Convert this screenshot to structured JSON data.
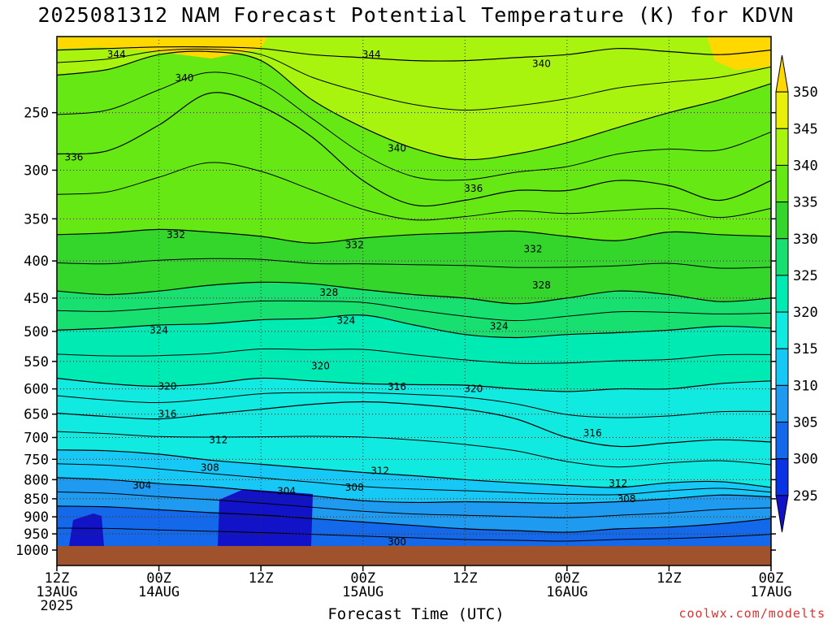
{
  "title": "2025081312 NAM Forecast Potential Temperature (K) for KDVN",
  "xlabel": "Forecast Time (UTC)",
  "credit": "coolwx.com/modelts",
  "chart_data": {
    "type": "contour",
    "yaxis": {
      "units": "hPa",
      "scale": "log",
      "range": [
        1000,
        200
      ],
      "reversed": true,
      "ticks": [
        250,
        300,
        350,
        400,
        450,
        500,
        550,
        600,
        650,
        700,
        750,
        800,
        850,
        900,
        950,
        1000
      ]
    },
    "xaxis": {
      "range_hours": [
        0,
        84
      ],
      "ticks": [
        {
          "h": 0,
          "lines": [
            "12Z",
            "13AUG",
            "2025"
          ]
        },
        {
          "h": 12,
          "lines": [
            "00Z",
            "14AUG"
          ]
        },
        {
          "h": 24,
          "lines": [
            "12Z"
          ]
        },
        {
          "h": 36,
          "lines": [
            "00Z",
            "15AUG"
          ]
        },
        {
          "h": 48,
          "lines": [
            "12Z"
          ]
        },
        {
          "h": 60,
          "lines": [
            "00Z",
            "16AUG"
          ]
        },
        {
          "h": 72,
          "lines": [
            "12Z"
          ]
        },
        {
          "h": 84,
          "lines": [
            "00Z",
            "17AUG"
          ]
        }
      ]
    },
    "colorbar": {
      "levels": [
        295,
        300,
        305,
        310,
        315,
        320,
        325,
        330,
        335,
        340,
        345,
        350
      ],
      "colors": [
        "#1212c8",
        "#0a33e6",
        "#1468ea",
        "#1e9bf0",
        "#16c8f5",
        "#10eae1",
        "#00ebb4",
        "#18e070",
        "#34d62c",
        "#66e814",
        "#a8f40e",
        "#e8f00a",
        "#ffd800"
      ]
    },
    "isentropes": [
      {
        "theta": 300,
        "p": [
          1000,
          1000,
          1000,
          1000,
          1000,
          1000,
          1000,
          1000,
          1000,
          1000,
          1000,
          1000,
          1000,
          1000,
          1000
        ]
      },
      {
        "theta": 304,
        "p": [
          870,
          872,
          880,
          888,
          895,
          905,
          915,
          925,
          935,
          940,
          945,
          935,
          930,
          920,
          905
        ]
      },
      {
        "theta": 308,
        "p": [
          795,
          800,
          810,
          818,
          830,
          842,
          855,
          860,
          858,
          860,
          862,
          858,
          850,
          840,
          845
        ]
      },
      {
        "theta": 312,
        "p": [
          728,
          730,
          738,
          752,
          762,
          772,
          782,
          790,
          800,
          808,
          815,
          820,
          808,
          805,
          820
        ]
      },
      {
        "theta": 316,
        "p": [
          648,
          655,
          660,
          650,
          640,
          630,
          625,
          630,
          640,
          660,
          700,
          720,
          712,
          705,
          710
        ]
      },
      {
        "theta": 320,
        "p": [
          580,
          590,
          595,
          590,
          580,
          585,
          590,
          592,
          593,
          600,
          605,
          600,
          600,
          590,
          585
        ]
      },
      {
        "theta": 324,
        "p": [
          498,
          495,
          490,
          488,
          482,
          480,
          475,
          490,
          505,
          510,
          505,
          502,
          498,
          492,
          495
        ]
      },
      {
        "theta": 328,
        "p": [
          440,
          445,
          440,
          432,
          428,
          430,
          438,
          445,
          450,
          458,
          450,
          440,
          445,
          455,
          450
        ]
      },
      {
        "theta": 332,
        "p": [
          368,
          366,
          362,
          365,
          370,
          378,
          372,
          368,
          366,
          364,
          370,
          375,
          365,
          368,
          370
        ]
      },
      {
        "theta": 336,
        "p": [
          285,
          282,
          260,
          235,
          245,
          270,
          310,
          335,
          330,
          320,
          320,
          310,
          315,
          330,
          310
        ]
      },
      {
        "theta": 340,
        "p": [
          222,
          218,
          208,
          206,
          212,
          240,
          262,
          280,
          290,
          285,
          275,
          262,
          250,
          240,
          228
        ]
      },
      {
        "theta": 344,
        "p": [
          205,
          204,
          203,
          203,
          204,
          208,
          210,
          212,
          212,
          210,
          208,
          204,
          206,
          208,
          205
        ]
      }
    ],
    "contour_labels": [
      {
        "text": "344",
        "h": 7,
        "p": 208
      },
      {
        "text": "344",
        "h": 37,
        "p": 208
      },
      {
        "text": "340",
        "h": 15,
        "p": 224
      },
      {
        "text": "340",
        "h": 57,
        "p": 214
      },
      {
        "text": "340",
        "h": 40,
        "p": 280
      },
      {
        "text": "336",
        "h": 2,
        "p": 288
      },
      {
        "text": "336",
        "h": 49,
        "p": 318
      },
      {
        "text": "332",
        "h": 14,
        "p": 368
      },
      {
        "text": "332",
        "h": 35,
        "p": 380
      },
      {
        "text": "332",
        "h": 56,
        "p": 385
      },
      {
        "text": "328",
        "h": 32,
        "p": 442
      },
      {
        "text": "328",
        "h": 57,
        "p": 432
      },
      {
        "text": "324",
        "h": 12,
        "p": 498
      },
      {
        "text": "324",
        "h": 34,
        "p": 483
      },
      {
        "text": "324",
        "h": 52,
        "p": 492
      },
      {
        "text": "320",
        "h": 31,
        "p": 558
      },
      {
        "text": "320",
        "h": 13,
        "p": 595
      },
      {
        "text": "320",
        "h": 49,
        "p": 600
      },
      {
        "text": "316",
        "h": 13,
        "p": 650
      },
      {
        "text": "316",
        "h": 40,
        "p": 596
      },
      {
        "text": "316",
        "h": 63,
        "p": 690
      },
      {
        "text": "312",
        "h": 19,
        "p": 705
      },
      {
        "text": "312",
        "h": 38,
        "p": 778
      },
      {
        "text": "312",
        "h": 66,
        "p": 810
      },
      {
        "text": "308",
        "h": 18,
        "p": 770
      },
      {
        "text": "308",
        "h": 35,
        "p": 820
      },
      {
        "text": "308",
        "h": 67,
        "p": 850
      },
      {
        "text": "304",
        "h": 10,
        "p": 815
      },
      {
        "text": "304",
        "h": 27,
        "p": 830
      },
      {
        "text": "300",
        "h": 40,
        "p": 975
      }
    ],
    "surface_color": "#a0522d"
  }
}
